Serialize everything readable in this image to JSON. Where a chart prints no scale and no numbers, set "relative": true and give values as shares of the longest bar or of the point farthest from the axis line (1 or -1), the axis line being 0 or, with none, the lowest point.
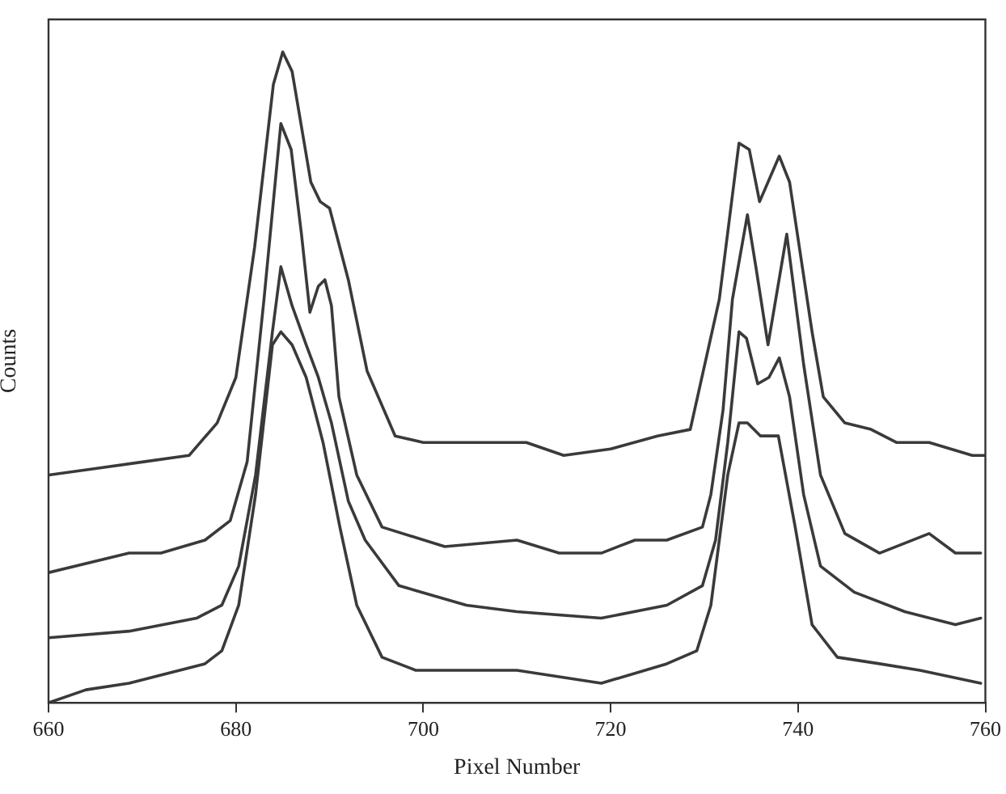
{
  "chart_data": {
    "type": "line",
    "xlabel": "Pixel Number",
    "ylabel": "Counts",
    "relative": true,
    "xlim": [
      660,
      760
    ],
    "xticks": [
      660,
      680,
      700,
      720,
      740,
      760
    ],
    "grid": false,
    "legend": false,
    "marker": "none",
    "line_style": "solid",
    "tick_labels": "x",
    "series": [
      {
        "color": "#3a3a3a",
        "x": [
          660,
          665,
          670,
          675,
          678,
          680,
          682,
          684,
          685,
          686,
          688,
          689,
          690,
          692,
          694,
          697,
          700,
          705,
          711,
          715,
          720,
          725,
          728.5,
          731.6,
          733.7,
          734.8,
          735.9,
          738,
          739.1,
          741.5,
          742.7,
          745,
          747.8,
          750.5,
          754,
          758.6,
          760
        ],
        "values": [
          0.35,
          0.36,
          0.37,
          0.38,
          0.43,
          0.5,
          0.7,
          0.95,
          1,
          0.97,
          0.8,
          0.77,
          0.76,
          0.65,
          0.51,
          0.41,
          0.4,
          0.4,
          0.4,
          0.38,
          0.39,
          0.41,
          0.42,
          0.62,
          0.86,
          0.85,
          0.77,
          0.84,
          0.8,
          0.57,
          0.47,
          0.43,
          0.42,
          0.4,
          0.4,
          0.38,
          0.38
        ]
      },
      {
        "color": "#3a3a3a",
        "x": [
          660,
          668.6,
          672,
          676.7,
          679.4,
          681.2,
          683,
          684.8,
          685.9,
          687,
          687.9,
          688.8,
          689.5,
          690.2,
          691,
          692.9,
          695.6,
          702.3,
          710,
          714.5,
          719,
          722.6,
          726,
          729.8,
          730.7,
          732,
          733,
          734.6,
          735.5,
          736.8,
          738.8,
          740.6,
          742.4,
          745,
          748.7,
          754,
          756.8,
          759.5
        ],
        "values": [
          0.2,
          0.23,
          0.23,
          0.25,
          0.28,
          0.37,
          0.62,
          0.89,
          0.85,
          0.72,
          0.6,
          0.64,
          0.65,
          0.61,
          0.47,
          0.35,
          0.27,
          0.24,
          0.25,
          0.23,
          0.23,
          0.25,
          0.25,
          0.27,
          0.32,
          0.45,
          0.62,
          0.75,
          0.67,
          0.55,
          0.72,
          0.52,
          0.35,
          0.26,
          0.23,
          0.26,
          0.23,
          0.23
        ]
      },
      {
        "color": "#3a3a3a",
        "x": [
          660,
          668.6,
          675.8,
          678.5,
          680.3,
          682.1,
          683.9,
          684.8,
          686,
          687.5,
          688.8,
          690.2,
          692,
          693.8,
          697.4,
          704.6,
          710,
          719,
          726,
          729.8,
          731.2,
          732.5,
          733.7,
          734.5,
          735.7,
          736.9,
          738,
          739.1,
          740.6,
          742.4,
          746,
          751.4,
          756.8,
          759.5
        ],
        "values": [
          0.1,
          0.11,
          0.13,
          0.15,
          0.21,
          0.35,
          0.57,
          0.67,
          0.61,
          0.55,
          0.5,
          0.43,
          0.31,
          0.25,
          0.18,
          0.15,
          0.14,
          0.13,
          0.15,
          0.18,
          0.25,
          0.4,
          0.57,
          0.56,
          0.49,
          0.5,
          0.53,
          0.47,
          0.32,
          0.21,
          0.17,
          0.14,
          0.12,
          0.13
        ]
      },
      {
        "color": "#3a3a3a",
        "x": [
          660,
          664,
          668.6,
          674,
          676.7,
          678.5,
          680.3,
          682.1,
          683.9,
          684.8,
          686,
          687.5,
          689.3,
          691.1,
          692.9,
          695.6,
          699.2,
          710,
          719,
          726,
          729.2,
          730.7,
          732.5,
          733.7,
          734.6,
          736,
          737.9,
          739.7,
          741.5,
          744.2,
          748.7,
          753,
          759.5
        ],
        "values": [
          0,
          0.02,
          0.03,
          0.05,
          0.06,
          0.08,
          0.15,
          0.32,
          0.55,
          0.57,
          0.55,
          0.5,
          0.4,
          0.27,
          0.15,
          0.07,
          0.05,
          0.05,
          0.03,
          0.06,
          0.08,
          0.15,
          0.35,
          0.43,
          0.43,
          0.41,
          0.41,
          0.27,
          0.12,
          0.07,
          0.06,
          0.05,
          0.03
        ]
      }
    ]
  }
}
